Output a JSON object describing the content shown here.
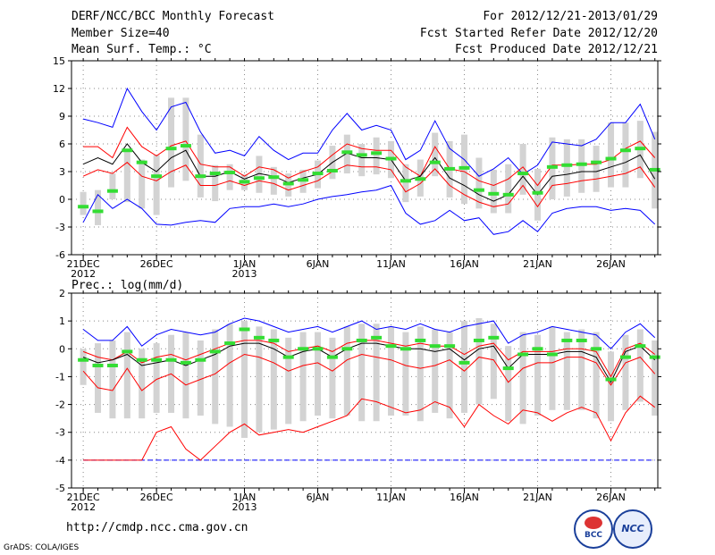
{
  "header": {
    "title": "DERF/NCC/BCC Monthly Forecast",
    "member": "Member Size=40",
    "var": "Mean Surf. Temp.: °C",
    "period": "For 2012/12/21-2013/01/29",
    "started": "Fcst Started Refer Date 2012/12/20",
    "produced": "Fcst Produced Date 2012/12/21"
  },
  "footer": {
    "url": "http://cmdp.ncc.cma.gov.cn",
    "grads": "GrADS: COLA/IGES",
    "logo1": "BCC",
    "logo2": "NCC"
  },
  "colors": {
    "max": "#0000ff",
    "min": "#0000ff",
    "p75": "#ff0000",
    "p25": "#ff0000",
    "mean": "#000000",
    "obs": "#33dd33",
    "box": "#d3d3d3"
  },
  "chart_data": [
    {
      "type": "box-line",
      "title": "Mean Surf. Temp.: °C",
      "ylim": [
        -6,
        15
      ],
      "yticks": [
        -6,
        -3,
        0,
        3,
        6,
        9,
        12,
        15
      ],
      "xticks": [
        {
          "day": 0,
          "label": "21DEC",
          "label2": "2012"
        },
        {
          "day": 5,
          "label": "26DEC"
        },
        {
          "day": 11,
          "label": "1JAN",
          "label2": "2013"
        },
        {
          "day": 16,
          "label": "6JAN"
        },
        {
          "day": 21,
          "label": "11JAN"
        },
        {
          "day": 26,
          "label": "16JAN"
        },
        {
          "day": 31,
          "label": "21JAN"
        },
        {
          "day": 36,
          "label": "26JAN"
        }
      ],
      "series": [
        {
          "name": "max",
          "values": [
            8.7,
            8.3,
            7.8,
            12,
            9.5,
            7.5,
            10,
            10.5,
            7.3,
            5,
            5.3,
            4.7,
            6.8,
            5.3,
            4.3,
            5,
            5,
            7.5,
            9.3,
            7.5,
            8,
            7.5,
            4.3,
            5.3,
            8.5,
            5.5,
            4.3,
            2.5,
            3.3,
            4.5,
            2.7,
            3.7,
            6.2,
            6,
            5.8,
            6.5,
            8.3,
            8.3,
            10.3,
            6.5
          ]
        },
        {
          "name": "p75",
          "values": [
            5.7,
            5.7,
            4.5,
            7.8,
            5.7,
            4.7,
            5.8,
            6.3,
            3.8,
            3.5,
            3.5,
            2.5,
            3.5,
            3.2,
            2.3,
            3,
            3.5,
            4.8,
            6,
            5.5,
            5.3,
            5.3,
            3.5,
            2.5,
            5.7,
            3.3,
            3,
            2,
            1.5,
            2.2,
            3.5,
            1.5,
            3.7,
            3.7,
            3.8,
            3.8,
            4.3,
            5.5,
            6.3,
            4.5
          ]
        },
        {
          "name": "mean",
          "values": [
            3.8,
            4.5,
            3.8,
            6,
            4,
            3,
            4.5,
            5.3,
            2.5,
            2.5,
            3,
            2.2,
            2.8,
            2.5,
            1.8,
            2.3,
            2.7,
            4,
            5,
            4.5,
            4.5,
            4.3,
            2,
            2.5,
            4.5,
            2.3,
            1.5,
            0.5,
            -0.2,
            0.5,
            2.5,
            0.5,
            2.5,
            2.7,
            3,
            3,
            3.5,
            4,
            4.8,
            2.2
          ]
        },
        {
          "name": "p25",
          "values": [
            2.5,
            3.2,
            2.8,
            4,
            2.5,
            2,
            3,
            3.7,
            1.5,
            1.5,
            2,
            1.5,
            2,
            1.7,
            1,
            1.5,
            2,
            3,
            3.7,
            3.5,
            3.5,
            3.2,
            0.8,
            1.7,
            3.3,
            1.5,
            0.5,
            -0.3,
            -0.8,
            -0.5,
            1.5,
            -0.8,
            1.5,
            1.7,
            2,
            2.2,
            2.5,
            2.8,
            3.5,
            1.3
          ]
        },
        {
          "name": "min",
          "values": [
            -2.5,
            0.5,
            -1,
            0,
            -1,
            -2.7,
            -2.8,
            -2.5,
            -2.3,
            -2.5,
            -1,
            -0.8,
            -0.8,
            -0.5,
            -0.8,
            -0.5,
            0,
            0.3,
            0.5,
            0.8,
            1,
            1.5,
            -1.5,
            -2.7,
            -2.3,
            -1.2,
            -2.3,
            -2,
            -3.8,
            -3.5,
            -2.3,
            -3.5,
            -1.5,
            -1,
            -0.8,
            -0.8,
            -1.2,
            -1,
            -1.2,
            -2.7
          ]
        },
        {
          "name": "box_high",
          "values": [
            0.8,
            1,
            2.8,
            5.3,
            4.3,
            4.8,
            11,
            11,
            7,
            3.7,
            3.8,
            2.7,
            4.7,
            3.5,
            2.8,
            3.2,
            4.2,
            5.8,
            7,
            6,
            6.7,
            6.3,
            3.8,
            4.3,
            7.2,
            6.3,
            7,
            4.5,
            3.2,
            3.8,
            6,
            3.3,
            6.7,
            6.5,
            6.5,
            5.8,
            8.3,
            8.3,
            8.5,
            7.3
          ]
        },
        {
          "name": "box_low",
          "values": [
            -1.7,
            -2.8,
            0,
            -0.3,
            -1,
            -1.7,
            1.3,
            2,
            0.2,
            -0.2,
            1,
            1,
            0.7,
            0.5,
            0.3,
            0.7,
            1.2,
            2.2,
            2.8,
            2.5,
            2.7,
            2.3,
            -0.3,
            0.3,
            2.5,
            0.2,
            -0.5,
            -1,
            -1.5,
            -1.5,
            0.5,
            -2.3,
            0,
            0.3,
            0.7,
            0.8,
            1.3,
            1.3,
            2.3,
            -1
          ]
        },
        {
          "name": "obs",
          "values": [
            -0.8,
            -1.3,
            0.9,
            5.3,
            4,
            2.5,
            5.5,
            5.8,
            2.5,
            2.8,
            2.9,
            1.9,
            2.3,
            2.4,
            1.7,
            2.1,
            2.8,
            3.1,
            5.1,
            4.8,
            5,
            4.4,
            2,
            2.2,
            4,
            3.3,
            3.4,
            1,
            0.6,
            0.5,
            2.8,
            0.7,
            3.5,
            3.7,
            3.8,
            4,
            4.4,
            5.3,
            5.5,
            3.2
          ]
        }
      ]
    },
    {
      "type": "box-line",
      "title": "Prec.: log(mm/d)",
      "ylim": [
        -5,
        2
      ],
      "yticks": [
        -5,
        -4,
        -3,
        -2,
        -1,
        0,
        1,
        2
      ],
      "xticks": [
        {
          "day": 0,
          "label": "21DEC",
          "label2": "2012"
        },
        {
          "day": 5,
          "label": "26DEC"
        },
        {
          "day": 11,
          "label": "1JAN",
          "label2": "2013"
        },
        {
          "day": 16,
          "label": "6JAN"
        },
        {
          "day": 21,
          "label": "11JAN"
        },
        {
          "day": 26,
          "label": "16JAN"
        },
        {
          "day": 31,
          "label": "21JAN"
        },
        {
          "day": 36,
          "label": "26JAN"
        }
      ],
      "series": [
        {
          "name": "max",
          "values": [
            0.7,
            0.3,
            0.3,
            0.8,
            0.1,
            0.5,
            0.7,
            0.6,
            0.5,
            0.6,
            0.9,
            1.1,
            1,
            0.8,
            0.6,
            0.7,
            0.8,
            0.6,
            0.8,
            1,
            0.7,
            0.8,
            0.7,
            0.9,
            0.7,
            0.6,
            0.8,
            0.9,
            1,
            0.2,
            0.5,
            0.6,
            0.8,
            0.7,
            0.6,
            0.5,
            0,
            0.6,
            0.9,
            0.4
          ]
        },
        {
          "name": "p75",
          "values": [
            -0.1,
            -0.3,
            -0.4,
            -0.1,
            -0.5,
            -0.3,
            -0.2,
            -0.4,
            -0.2,
            0,
            0.2,
            0.3,
            0.3,
            0.2,
            -0.1,
            0,
            0.1,
            -0.1,
            0.2,
            0.3,
            0.3,
            0.2,
            0.1,
            0.2,
            0.1,
            0.1,
            -0.2,
            0.1,
            0.2,
            -0.4,
            -0.1,
            -0.1,
            -0.1,
            0,
            0,
            -0.1,
            -1,
            0,
            0.2,
            -0.2
          ]
        },
        {
          "name": "mean",
          "values": [
            -0.3,
            -0.5,
            -0.4,
            -0.2,
            -0.6,
            -0.5,
            -0.4,
            -0.6,
            -0.4,
            -0.2,
            0.1,
            0.2,
            0.2,
            0,
            -0.3,
            -0.1,
            0,
            -0.3,
            0,
            0.2,
            0.2,
            0.1,
            0,
            0,
            -0.1,
            0,
            -0.4,
            0,
            0.1,
            -0.7,
            -0.2,
            -0.2,
            -0.2,
            -0.1,
            -0.1,
            -0.3,
            -1.2,
            -0.1,
            0.1,
            -0.4
          ]
        },
        {
          "name": "p25",
          "values": [
            -0.8,
            -1.4,
            -1.5,
            -0.7,
            -1.5,
            -1.1,
            -0.9,
            -1.3,
            -1.1,
            -0.9,
            -0.5,
            -0.2,
            -0.3,
            -0.5,
            -0.8,
            -0.6,
            -0.5,
            -0.8,
            -0.4,
            -0.2,
            -0.3,
            -0.4,
            -0.6,
            -0.7,
            -0.6,
            -0.4,
            -0.8,
            -0.3,
            -0.4,
            -1.2,
            -0.7,
            -0.5,
            -0.5,
            -0.3,
            -0.3,
            -0.5,
            -1.3,
            -0.5,
            -0.3,
            -0.9
          ]
        },
        {
          "name": "min",
          "values": [
            -4,
            -4,
            -4,
            -4,
            -4,
            -3,
            -2.8,
            -3.6,
            -4,
            -3.5,
            -3,
            -2.7,
            -3.1,
            -3,
            -2.9,
            -3,
            -2.8,
            -2.6,
            -2.4,
            -1.8,
            -1.9,
            -2.1,
            -2.3,
            -2.2,
            -1.9,
            -2.1,
            -2.8,
            -2,
            -2.4,
            -2.7,
            -2.2,
            -2.3,
            -2.6,
            -2.3,
            -2.1,
            -2.3,
            -3.3,
            -2.3,
            -1.7,
            -2.1
          ]
        },
        {
          "name": "ext_min",
          "values": [
            -4,
            -4,
            -4,
            -4,
            -4,
            -4,
            -4,
            -4,
            -4,
            -4,
            -4,
            -4,
            -4,
            -4,
            -4,
            -4,
            -4,
            -4,
            -4,
            -4,
            -4,
            -4,
            -4,
            -4,
            -4,
            -4,
            -4,
            -4,
            -4,
            -4,
            -4,
            -4,
            -4,
            -4,
            -4,
            -4,
            -4,
            -4,
            -4,
            -4
          ]
        },
        {
          "name": "box_high",
          "values": [
            0,
            0.2,
            0.3,
            0.6,
            0,
            0.2,
            0.5,
            0.6,
            0.3,
            0.7,
            0.9,
            1,
            0.8,
            0.7,
            0.4,
            0.6,
            0.6,
            0.4,
            0.8,
            0.9,
            0.9,
            0.8,
            0.6,
            0.8,
            0.7,
            0.6,
            1,
            1.1,
            0.9,
            0.1,
            0.6,
            0.5,
            0.8,
            0.6,
            0.7,
            0.6,
            -0.1,
            0.5,
            0.7,
            0.3
          ]
        },
        {
          "name": "box_low",
          "values": [
            -1.3,
            -2.3,
            -2.5,
            -2.5,
            -2.5,
            -2.3,
            -2.3,
            -2.5,
            -2.4,
            -2.7,
            -2.8,
            -3.2,
            -3,
            -2.9,
            -2.7,
            -2.6,
            -2.4,
            -2.5,
            -2.4,
            -2.6,
            -2.6,
            -2.4,
            -2.4,
            -2.6,
            -2.3,
            -2.5,
            -2.3,
            -2,
            -1.8,
            -2.6,
            -2.7,
            -2.4,
            -2.2,
            -2.2,
            -2.2,
            -2.5,
            -2.6,
            -2.2,
            -1.9,
            -2.4
          ]
        },
        {
          "name": "obs",
          "values": [
            -0.4,
            -0.6,
            -0.6,
            -0.1,
            -0.4,
            -0.4,
            -0.4,
            -0.5,
            -0.4,
            -0.1,
            0.2,
            0.7,
            0.4,
            0.3,
            -0.3,
            0,
            0,
            -0.3,
            0,
            0.3,
            0.4,
            0.1,
            0,
            0.3,
            0.1,
            0.1,
            -0.5,
            0.3,
            0.4,
            -0.7,
            -0.2,
            0,
            -0.2,
            0.3,
            0.3,
            0,
            -1.1,
            -0.3,
            0.1,
            -0.3
          ]
        }
      ]
    }
  ]
}
